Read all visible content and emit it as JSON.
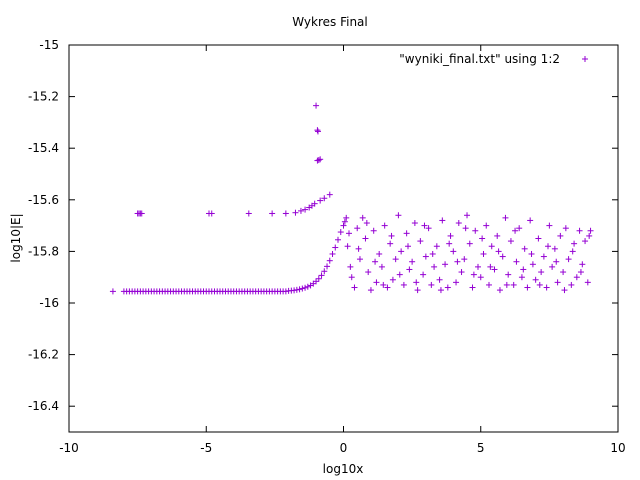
{
  "chart_data": {
    "type": "scatter",
    "title": "Wykres Final",
    "xlabel": "log10x",
    "ylabel": "log10|E|",
    "xlim": [
      -10,
      10
    ],
    "ylim": [
      -16.5,
      -15
    ],
    "xticks": [
      -10,
      -5,
      0,
      5,
      10
    ],
    "xtick_labels": [
      "-10",
      "-5",
      "0",
      "5",
      "10"
    ],
    "yticks": [
      -15,
      -15.2,
      -15.4,
      -15.6,
      -15.8,
      -16,
      -16.2,
      -16.4
    ],
    "ytick_labels": [
      "-15",
      "-15.2",
      "-15.4",
      "-15.6",
      "-15.8",
      "-16",
      "-16.2",
      "-16.4"
    ],
    "grid": false,
    "legend": {
      "placement": "top-right",
      "entries": [
        "\"wyniki_final.txt\" using 1:2"
      ]
    },
    "marker": "+",
    "color": "#9400d3",
    "series": [
      {
        "name": "\"wyniki_final.txt\" using 1:2",
        "points": [
          [
            -8.4,
            -15.955
          ],
          [
            -8.0,
            -15.955
          ],
          [
            -7.9,
            -15.955
          ],
          [
            -7.8,
            -15.955
          ],
          [
            -7.7,
            -15.955
          ],
          [
            -7.6,
            -15.955
          ],
          [
            -7.5,
            -15.955
          ],
          [
            -7.4,
            -15.955
          ],
          [
            -7.3,
            -15.955
          ],
          [
            -7.2,
            -15.955
          ],
          [
            -7.1,
            -15.955
          ],
          [
            -7.0,
            -15.955
          ],
          [
            -6.9,
            -15.955
          ],
          [
            -6.8,
            -15.955
          ],
          [
            -6.7,
            -15.955
          ],
          [
            -6.6,
            -15.955
          ],
          [
            -6.5,
            -15.955
          ],
          [
            -6.4,
            -15.955
          ],
          [
            -6.3,
            -15.955
          ],
          [
            -6.2,
            -15.955
          ],
          [
            -6.1,
            -15.955
          ],
          [
            -6.0,
            -15.955
          ],
          [
            -5.9,
            -15.955
          ],
          [
            -5.8,
            -15.955
          ],
          [
            -5.7,
            -15.955
          ],
          [
            -5.6,
            -15.955
          ],
          [
            -5.5,
            -15.955
          ],
          [
            -5.4,
            -15.955
          ],
          [
            -5.3,
            -15.955
          ],
          [
            -5.2,
            -15.955
          ],
          [
            -5.1,
            -15.955
          ],
          [
            -5.0,
            -15.955
          ],
          [
            -4.9,
            -15.955
          ],
          [
            -4.8,
            -15.955
          ],
          [
            -4.7,
            -15.955
          ],
          [
            -4.6,
            -15.955
          ],
          [
            -4.5,
            -15.955
          ],
          [
            -4.4,
            -15.955
          ],
          [
            -4.3,
            -15.955
          ],
          [
            -4.2,
            -15.955
          ],
          [
            -4.1,
            -15.955
          ],
          [
            -4.0,
            -15.955
          ],
          [
            -3.9,
            -15.955
          ],
          [
            -3.8,
            -15.955
          ],
          [
            -3.7,
            -15.955
          ],
          [
            -3.6,
            -15.955
          ],
          [
            -3.5,
            -15.955
          ],
          [
            -3.4,
            -15.955
          ],
          [
            -3.3,
            -15.955
          ],
          [
            -3.2,
            -15.955
          ],
          [
            -3.1,
            -15.955
          ],
          [
            -3.0,
            -15.955
          ],
          [
            -2.9,
            -15.955
          ],
          [
            -2.8,
            -15.955
          ],
          [
            -2.7,
            -15.955
          ],
          [
            -2.6,
            -15.955
          ],
          [
            -2.5,
            -15.955
          ],
          [
            -2.4,
            -15.955
          ],
          [
            -2.3,
            -15.955
          ],
          [
            -2.2,
            -15.955
          ],
          [
            -2.1,
            -15.955
          ],
          [
            -2.0,
            -15.953
          ],
          [
            -1.9,
            -15.952
          ],
          [
            -1.8,
            -15.951
          ],
          [
            -1.7,
            -15.949
          ],
          [
            -1.6,
            -15.947
          ],
          [
            -1.5,
            -15.944
          ],
          [
            -1.4,
            -15.941
          ],
          [
            -1.3,
            -15.937
          ],
          [
            -1.2,
            -15.932
          ],
          [
            -1.1,
            -15.925
          ],
          [
            -1.0,
            -15.916
          ],
          [
            -0.9,
            -15.906
          ],
          [
            -0.8,
            -15.893
          ],
          [
            -0.7,
            -15.877
          ],
          [
            -0.6,
            -15.858
          ],
          [
            -0.5,
            -15.836
          ],
          [
            -0.4,
            -15.81
          ],
          [
            -0.3,
            -15.785
          ],
          [
            -0.2,
            -15.755
          ],
          [
            -0.1,
            -15.725
          ],
          [
            0.0,
            -15.7
          ],
          [
            0.05,
            -15.685
          ],
          [
            0.1,
            -15.67
          ],
          [
            -7.5,
            -15.653
          ],
          [
            -7.45,
            -15.653
          ],
          [
            -7.4,
            -15.653
          ],
          [
            -7.35,
            -15.653
          ],
          [
            -4.9,
            -15.653
          ],
          [
            -4.8,
            -15.653
          ],
          [
            -3.45,
            -15.653
          ],
          [
            -2.6,
            -15.653
          ],
          [
            -2.1,
            -15.653
          ],
          [
            -1.75,
            -15.65
          ],
          [
            -1.55,
            -15.643
          ],
          [
            -1.4,
            -15.638
          ],
          [
            -1.25,
            -15.63
          ],
          [
            -1.15,
            -15.623
          ],
          [
            -1.05,
            -15.615
          ],
          [
            -0.85,
            -15.603
          ],
          [
            -0.7,
            -15.594
          ],
          [
            -0.5,
            -15.58
          ],
          [
            -1.0,
            -15.235
          ],
          [
            -0.95,
            -15.33
          ],
          [
            -0.93,
            -15.335
          ],
          [
            -0.95,
            -15.448
          ],
          [
            -0.9,
            -15.446
          ],
          [
            -0.85,
            -15.443
          ],
          [
            0.15,
            -15.78
          ],
          [
            0.2,
            -15.73
          ],
          [
            0.3,
            -15.9
          ],
          [
            0.4,
            -15.94
          ],
          [
            0.5,
            -15.71
          ],
          [
            0.6,
            -15.83
          ],
          [
            0.7,
            -15.67
          ],
          [
            0.8,
            -15.75
          ],
          [
            0.9,
            -15.88
          ],
          [
            1.0,
            -15.95
          ],
          [
            1.1,
            -15.72
          ],
          [
            1.2,
            -15.92
          ],
          [
            1.3,
            -15.81
          ],
          [
            1.4,
            -15.86
          ],
          [
            1.5,
            -15.7
          ],
          [
            1.6,
            -15.94
          ],
          [
            1.7,
            -15.77
          ],
          [
            1.8,
            -15.91
          ],
          [
            1.9,
            -15.83
          ],
          [
            2.0,
            -15.66
          ],
          [
            2.1,
            -15.8
          ],
          [
            2.2,
            -15.93
          ],
          [
            2.3,
            -15.73
          ],
          [
            2.4,
            -15.87
          ],
          [
            2.5,
            -15.84
          ],
          [
            2.6,
            -15.69
          ],
          [
            2.7,
            -15.95
          ],
          [
            2.8,
            -15.76
          ],
          [
            2.9,
            -15.89
          ],
          [
            3.0,
            -15.82
          ],
          [
            3.1,
            -15.71
          ],
          [
            3.2,
            -15.93
          ],
          [
            3.3,
            -15.86
          ],
          [
            3.4,
            -15.78
          ],
          [
            3.5,
            -15.91
          ],
          [
            3.6,
            -15.68
          ],
          [
            3.7,
            -15.85
          ],
          [
            3.8,
            -15.94
          ],
          [
            3.9,
            -15.74
          ],
          [
            4.0,
            -15.8
          ],
          [
            4.1,
            -15.92
          ],
          [
            4.2,
            -15.69
          ],
          [
            4.3,
            -15.88
          ],
          [
            4.4,
            -15.83
          ],
          [
            4.5,
            -15.66
          ],
          [
            4.6,
            -15.77
          ],
          [
            4.7,
            -15.94
          ],
          [
            4.8,
            -15.72
          ],
          [
            4.9,
            -15.86
          ],
          [
            5.0,
            -15.9
          ],
          [
            5.1,
            -15.81
          ],
          [
            5.2,
            -15.7
          ],
          [
            5.3,
            -15.93
          ],
          [
            5.4,
            -15.78
          ],
          [
            5.5,
            -15.87
          ],
          [
            5.6,
            -15.74
          ],
          [
            5.7,
            -15.95
          ],
          [
            5.8,
            -15.82
          ],
          [
            5.9,
            -15.67
          ],
          [
            6.0,
            -15.89
          ],
          [
            6.1,
            -15.76
          ],
          [
            6.2,
            -15.93
          ],
          [
            6.3,
            -15.84
          ],
          [
            6.4,
            -15.71
          ],
          [
            6.5,
            -15.9
          ],
          [
            6.6,
            -15.79
          ],
          [
            6.7,
            -15.94
          ],
          [
            6.8,
            -15.68
          ],
          [
            6.9,
            -15.85
          ],
          [
            7.0,
            -15.91
          ],
          [
            7.1,
            -15.75
          ],
          [
            7.2,
            -15.88
          ],
          [
            7.3,
            -15.82
          ],
          [
            7.4,
            -15.94
          ],
          [
            7.5,
            -15.7
          ],
          [
            7.6,
            -15.86
          ],
          [
            7.7,
            -15.79
          ],
          [
            7.8,
            -15.92
          ],
          [
            7.9,
            -15.74
          ],
          [
            8.0,
            -15.88
          ],
          [
            8.1,
            -15.71
          ],
          [
            8.2,
            -15.83
          ],
          [
            8.3,
            -15.93
          ],
          [
            8.4,
            -15.77
          ],
          [
            8.5,
            -15.9
          ],
          [
            8.6,
            -15.72
          ],
          [
            8.7,
            -15.85
          ],
          [
            8.8,
            -15.76
          ],
          [
            8.9,
            -15.92
          ],
          [
            9.0,
            -15.72
          ],
          [
            0.25,
            -15.86
          ],
          [
            0.55,
            -15.79
          ],
          [
            0.85,
            -15.69
          ],
          [
            1.15,
            -15.84
          ],
          [
            1.45,
            -15.93
          ],
          [
            1.75,
            -15.74
          ],
          [
            2.05,
            -15.89
          ],
          [
            2.35,
            -15.78
          ],
          [
            2.65,
            -15.92
          ],
          [
            2.95,
            -15.7
          ],
          [
            3.25,
            -15.81
          ],
          [
            3.55,
            -15.95
          ],
          [
            3.85,
            -15.77
          ],
          [
            4.15,
            -15.84
          ],
          [
            4.45,
            -15.71
          ],
          [
            4.75,
            -15.89
          ],
          [
            5.05,
            -15.75
          ],
          [
            5.35,
            -15.86
          ],
          [
            5.65,
            -15.8
          ],
          [
            5.95,
            -15.93
          ],
          [
            6.25,
            -15.72
          ],
          [
            6.55,
            -15.87
          ],
          [
            6.85,
            -15.81
          ],
          [
            7.15,
            -15.93
          ],
          [
            7.45,
            -15.78
          ],
          [
            7.75,
            -15.84
          ],
          [
            8.05,
            -15.95
          ],
          [
            8.35,
            -15.8
          ],
          [
            8.65,
            -15.88
          ],
          [
            8.95,
            -15.74
          ]
        ]
      }
    ]
  }
}
